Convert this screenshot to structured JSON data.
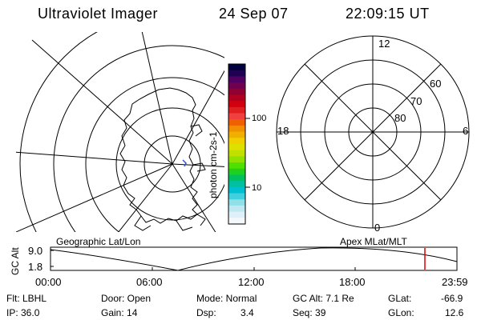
{
  "header": {
    "title": "Ultraviolet Imager",
    "date": "24 Sep 07",
    "time": "22:09:15 UT"
  },
  "geo_panel": {
    "label": "Geographic Lat/Lon"
  },
  "polar_panel": {
    "label": "Apex MLat/MLT",
    "mlt_labels": {
      "top": "12",
      "bottom": "0",
      "left": "18",
      "right": "6"
    },
    "mlat_labels": [
      "60",
      "70",
      "80"
    ]
  },
  "colorbar": {
    "unit_label": "photon cm-2s-1",
    "ticks": [
      "100",
      "10"
    ],
    "colors": [
      "#000040",
      "#200050",
      "#500060",
      "#700050",
      "#900030",
      "#b00020",
      "#d00010",
      "#e02020",
      "#f04040",
      "#f06000",
      "#f09000",
      "#f0b000",
      "#f0d000",
      "#e0e000",
      "#c0e000",
      "#90e000",
      "#50e000",
      "#20d020",
      "#00c060",
      "#00c0a0",
      "#00c0d0",
      "#40d0e0",
      "#90e0e8",
      "#c0e8f0",
      "#e0f0f8",
      "#f4f8fb"
    ]
  },
  "altitude_strip": {
    "axis_label": "GC Alt",
    "ymax": "9.0",
    "ymin": "1.8",
    "x_ticks": [
      "00:00",
      "06:00",
      "12:00",
      "18:00",
      "23:59"
    ],
    "marker_color": "#e00000"
  },
  "info": {
    "filter": "Flt: LBHL",
    "ip": "IP: 36.0",
    "door": "Door: Open",
    "gain": "Gain: 14",
    "mode": "Mode: Normal",
    "dsp_label": "Dsp:",
    "dsp_value": "3.4",
    "gc_alt": "GC Alt: 7.1 Re",
    "seq": "Seq: 39",
    "glat_label": "GLat:",
    "glat_value": "-66.9",
    "glon_label": "GLon:",
    "glon_value": "12.6"
  }
}
